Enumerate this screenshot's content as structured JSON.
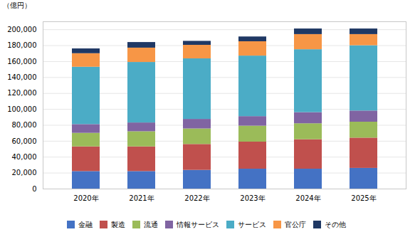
{
  "chart_data": {
    "type": "bar",
    "stacked": true,
    "ylabel": "（億円）",
    "categories": [
      "2020年",
      "2021年",
      "2022年",
      "2023年",
      "2024年",
      "2025年"
    ],
    "series": [
      {
        "name": "金融",
        "color": "#4472c4",
        "values": [
          22000,
          22000,
          23500,
          25000,
          25000,
          26000
        ]
      },
      {
        "name": "製造",
        "color": "#c0504d",
        "values": [
          31000,
          31000,
          32500,
          34000,
          37000,
          38000
        ]
      },
      {
        "name": "流通",
        "color": "#9bbb59",
        "values": [
          17000,
          19000,
          19500,
          20000,
          20000,
          20000
        ]
      },
      {
        "name": "情報サービス",
        "color": "#8064a2",
        "values": [
          11000,
          11000,
          12000,
          12000,
          14000,
          14000
        ]
      },
      {
        "name": "サービス",
        "color": "#4bacc6",
        "values": [
          72000,
          76000,
          76000,
          76000,
          79000,
          82000
        ]
      },
      {
        "name": "官公庁",
        "color": "#f79646",
        "values": [
          17000,
          18000,
          17000,
          18000,
          19000,
          14000
        ]
      },
      {
        "name": "その他",
        "color": "#1f3864",
        "values": [
          6000,
          7000,
          5000,
          6000,
          7000,
          7000
        ]
      }
    ],
    "ylim": [
      0,
      210000
    ],
    "yticks": [
      0,
      {
        "value": 20000,
        "label": "20,000"
      },
      {
        "value": 40000,
        "label": "40,000"
      },
      {
        "value": 60000,
        "label": "60,000"
      },
      {
        "value": 80000,
        "label": "80,000"
      },
      {
        "value": 100000,
        "label": "100,000"
      },
      {
        "value": 120000,
        "label": "120,000"
      },
      {
        "value": 140000,
        "label": "140,000"
      },
      {
        "value": 160000,
        "label": "160,000"
      },
      {
        "value": 180000,
        "label": "180,000"
      },
      {
        "value": 200000,
        "label": "200,000"
      }
    ],
    "grid": true,
    "legend": "bottom"
  }
}
